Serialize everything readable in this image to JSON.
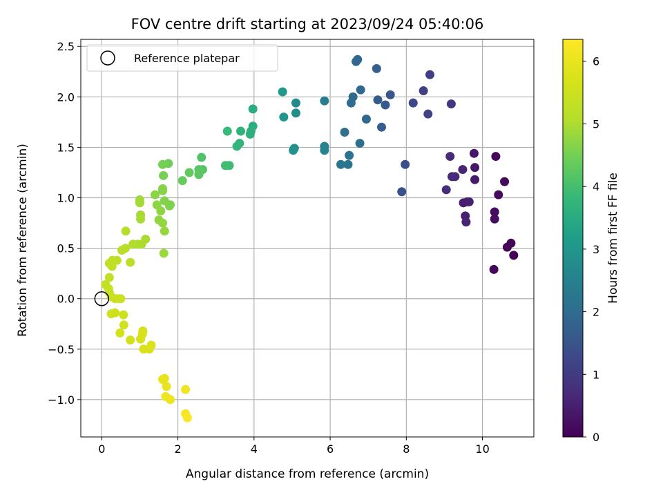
{
  "chart_data": {
    "type": "scatter",
    "title": "FOV centre drift starting at 2023/09/24 05:40:06",
    "xlabel": "Angular distance from reference (arcmin)",
    "ylabel": "Rotation from reference (arcmin)",
    "xlim": [
      -0.55,
      11.35
    ],
    "ylim": [
      -1.37,
      2.57
    ],
    "xticks": [
      0,
      2,
      4,
      6,
      8,
      10
    ],
    "yticks": [
      -1.0,
      -0.5,
      0.0,
      0.5,
      1.0,
      1.5,
      2.0,
      2.5
    ],
    "xtick_labels": [
      "0",
      "2",
      "4",
      "6",
      "8",
      "10"
    ],
    "ytick_labels": [
      "−1.0",
      "−0.5",
      "0.0",
      "0.5",
      "1.0",
      "1.5",
      "2.0",
      "2.5"
    ],
    "grid": true,
    "colormap": "viridis",
    "legend": {
      "position": "top-left",
      "entries": [
        {
          "label": "Reference platepar",
          "marker": "open-circle"
        }
      ]
    },
    "reference_point": {
      "x": 0.0,
      "y": 0.0
    },
    "colorbar": {
      "label": "Hours from first FF file",
      "min": 0,
      "max": 6.35,
      "ticks": [
        0,
        1,
        2,
        3,
        4,
        5,
        6
      ],
      "tick_labels": [
        "0",
        "1",
        "2",
        "3",
        "4",
        "5",
        "6"
      ]
    },
    "points": [
      {
        "x": 10.75,
        "y": 0.55,
        "c": 0.05
      },
      {
        "x": 10.65,
        "y": 0.51,
        "c": 0.08
      },
      {
        "x": 10.82,
        "y": 0.43,
        "c": 0.04
      },
      {
        "x": 10.3,
        "y": 0.29,
        "c": 0.1
      },
      {
        "x": 10.35,
        "y": 1.41,
        "c": 0.12
      },
      {
        "x": 10.58,
        "y": 1.16,
        "c": 0.15
      },
      {
        "x": 10.42,
        "y": 1.03,
        "c": 0.18
      },
      {
        "x": 10.32,
        "y": 0.86,
        "c": 0.2
      },
      {
        "x": 10.32,
        "y": 0.79,
        "c": 0.22
      },
      {
        "x": 9.78,
        "y": 1.44,
        "c": 0.35
      },
      {
        "x": 9.8,
        "y": 1.3,
        "c": 0.38
      },
      {
        "x": 9.8,
        "y": 1.18,
        "c": 0.4
      },
      {
        "x": 9.6,
        "y": 0.96,
        "c": 0.45
      },
      {
        "x": 9.5,
        "y": 0.95,
        "c": 0.48
      },
      {
        "x": 9.65,
        "y": 0.96,
        "c": 0.5
      },
      {
        "x": 9.55,
        "y": 0.82,
        "c": 0.52
      },
      {
        "x": 9.57,
        "y": 0.76,
        "c": 0.55
      },
      {
        "x": 9.48,
        "y": 1.28,
        "c": 0.6
      },
      {
        "x": 9.2,
        "y": 1.21,
        "c": 0.65
      },
      {
        "x": 9.28,
        "y": 1.21,
        "c": 0.68
      },
      {
        "x": 9.15,
        "y": 1.41,
        "c": 0.72
      },
      {
        "x": 9.05,
        "y": 1.08,
        "c": 0.75
      },
      {
        "x": 9.18,
        "y": 1.93,
        "c": 0.9
      },
      {
        "x": 8.62,
        "y": 2.22,
        "c": 1.05
      },
      {
        "x": 8.45,
        "y": 2.06,
        "c": 1.1
      },
      {
        "x": 8.57,
        "y": 1.83,
        "c": 1.15
      },
      {
        "x": 8.18,
        "y": 1.94,
        "c": 1.25
      },
      {
        "x": 7.97,
        "y": 1.33,
        "c": 1.4
      },
      {
        "x": 7.88,
        "y": 1.06,
        "c": 1.45
      },
      {
        "x": 7.58,
        "y": 2.02,
        "c": 1.55
      },
      {
        "x": 7.45,
        "y": 1.92,
        "c": 1.6
      },
      {
        "x": 7.25,
        "y": 1.97,
        "c": 1.65
      },
      {
        "x": 7.35,
        "y": 1.7,
        "c": 1.7
      },
      {
        "x": 7.22,
        "y": 2.28,
        "c": 1.75
      },
      {
        "x": 6.72,
        "y": 2.37,
        "c": 1.85
      },
      {
        "x": 6.68,
        "y": 2.35,
        "c": 1.88
      },
      {
        "x": 6.8,
        "y": 2.07,
        "c": 1.9
      },
      {
        "x": 6.95,
        "y": 1.78,
        "c": 1.93
      },
      {
        "x": 6.6,
        "y": 2.0,
        "c": 1.98
      },
      {
        "x": 6.55,
        "y": 1.94,
        "c": 2.0
      },
      {
        "x": 6.78,
        "y": 1.54,
        "c": 2.05
      },
      {
        "x": 6.38,
        "y": 1.65,
        "c": 2.1
      },
      {
        "x": 6.5,
        "y": 1.42,
        "c": 2.15
      },
      {
        "x": 6.47,
        "y": 1.33,
        "c": 2.2
      },
      {
        "x": 6.28,
        "y": 1.33,
        "c": 2.25
      },
      {
        "x": 5.85,
        "y": 1.96,
        "c": 2.45
      },
      {
        "x": 5.85,
        "y": 1.51,
        "c": 2.55
      },
      {
        "x": 5.85,
        "y": 1.47,
        "c": 2.58
      },
      {
        "x": 5.1,
        "y": 1.94,
        "c": 2.75
      },
      {
        "x": 5.1,
        "y": 1.84,
        "c": 2.8
      },
      {
        "x": 5.06,
        "y": 1.49,
        "c": 2.88
      },
      {
        "x": 5.03,
        "y": 1.47,
        "c": 2.9
      },
      {
        "x": 4.78,
        "y": 1.8,
        "c": 3.0
      },
      {
        "x": 4.75,
        "y": 2.05,
        "c": 3.05
      },
      {
        "x": 3.97,
        "y": 1.88,
        "c": 3.5
      },
      {
        "x": 3.97,
        "y": 1.71,
        "c": 3.55
      },
      {
        "x": 3.92,
        "y": 1.66,
        "c": 3.6
      },
      {
        "x": 3.9,
        "y": 1.63,
        "c": 3.62
      },
      {
        "x": 3.65,
        "y": 1.66,
        "c": 3.68
      },
      {
        "x": 3.62,
        "y": 1.54,
        "c": 3.72
      },
      {
        "x": 3.55,
        "y": 1.51,
        "c": 3.75
      },
      {
        "x": 3.3,
        "y": 1.66,
        "c": 3.85
      },
      {
        "x": 3.35,
        "y": 1.32,
        "c": 3.9
      },
      {
        "x": 3.25,
        "y": 1.32,
        "c": 3.95
      },
      {
        "x": 2.62,
        "y": 1.4,
        "c": 4.1
      },
      {
        "x": 2.65,
        "y": 1.28,
        "c": 4.15
      },
      {
        "x": 2.55,
        "y": 1.28,
        "c": 4.2
      },
      {
        "x": 2.58,
        "y": 1.26,
        "c": 4.22
      },
      {
        "x": 2.55,
        "y": 1.23,
        "c": 4.25
      },
      {
        "x": 2.3,
        "y": 1.25,
        "c": 4.3
      },
      {
        "x": 2.12,
        "y": 1.17,
        "c": 4.35
      },
      {
        "x": 1.75,
        "y": 1.34,
        "c": 4.45
      },
      {
        "x": 1.6,
        "y": 1.33,
        "c": 4.5
      },
      {
        "x": 1.62,
        "y": 1.22,
        "c": 4.52
      },
      {
        "x": 1.78,
        "y": 0.92,
        "c": 4.58
      },
      {
        "x": 1.8,
        "y": 0.93,
        "c": 4.6
      },
      {
        "x": 1.65,
        "y": 0.97,
        "c": 4.62
      },
      {
        "x": 1.6,
        "y": 1.09,
        "c": 4.65
      },
      {
        "x": 1.6,
        "y": 1.07,
        "c": 4.66
      },
      {
        "x": 1.4,
        "y": 1.03,
        "c": 4.7
      },
      {
        "x": 1.45,
        "y": 0.93,
        "c": 4.72
      },
      {
        "x": 1.55,
        "y": 0.87,
        "c": 4.74
      },
      {
        "x": 1.5,
        "y": 0.78,
        "c": 4.76
      },
      {
        "x": 1.6,
        "y": 0.75,
        "c": 4.78
      },
      {
        "x": 1.65,
        "y": 0.67,
        "c": 4.8
      },
      {
        "x": 1.63,
        "y": 0.45,
        "c": 4.85
      },
      {
        "x": 1.0,
        "y": 0.98,
        "c": 4.9
      },
      {
        "x": 1.0,
        "y": 0.95,
        "c": 4.92
      },
      {
        "x": 1.02,
        "y": 0.83,
        "c": 4.94
      },
      {
        "x": 1.02,
        "y": 0.79,
        "c": 4.96
      },
      {
        "x": 1.15,
        "y": 0.59,
        "c": 4.98
      },
      {
        "x": 1.05,
        "y": 0.54,
        "c": 5.0
      },
      {
        "x": 0.95,
        "y": 0.54,
        "c": 5.02
      },
      {
        "x": 0.82,
        "y": 0.54,
        "c": 5.04
      },
      {
        "x": 0.63,
        "y": 0.67,
        "c": 5.08
      },
      {
        "x": 0.62,
        "y": 0.5,
        "c": 5.12
      },
      {
        "x": 0.53,
        "y": 0.48,
        "c": 5.15
      },
      {
        "x": 0.75,
        "y": 0.36,
        "c": 5.18
      },
      {
        "x": 0.4,
        "y": 0.38,
        "c": 5.22
      },
      {
        "x": 0.28,
        "y": 0.38,
        "c": 5.25
      },
      {
        "x": 0.2,
        "y": 0.35,
        "c": 5.27
      },
      {
        "x": 0.27,
        "y": 0.32,
        "c": 5.3
      },
      {
        "x": 0.2,
        "y": 0.21,
        "c": 5.33
      },
      {
        "x": 0.1,
        "y": 0.14,
        "c": 5.36
      },
      {
        "x": 0.18,
        "y": 0.1,
        "c": 5.38
      },
      {
        "x": 0.2,
        "y": 0.06,
        "c": 5.4
      },
      {
        "x": 0.25,
        "y": 0.02,
        "c": 5.42
      },
      {
        "x": 0.35,
        "y": 0.0,
        "c": 5.44
      },
      {
        "x": 0.45,
        "y": 0.0,
        "c": 5.46
      },
      {
        "x": 0.5,
        "y": 0.0,
        "c": 5.48
      },
      {
        "x": 0.25,
        "y": -0.15,
        "c": 5.52
      },
      {
        "x": 0.35,
        "y": -0.14,
        "c": 5.54
      },
      {
        "x": 0.57,
        "y": -0.16,
        "c": 5.56
      },
      {
        "x": 0.58,
        "y": -0.26,
        "c": 5.58
      },
      {
        "x": 0.48,
        "y": -0.34,
        "c": 5.6
      },
      {
        "x": 0.75,
        "y": -0.41,
        "c": 5.63
      },
      {
        "x": 1.08,
        "y": -0.32,
        "c": 5.66
      },
      {
        "x": 1.07,
        "y": -0.35,
        "c": 5.68
      },
      {
        "x": 1.02,
        "y": -0.4,
        "c": 5.7
      },
      {
        "x": 1.1,
        "y": -0.5,
        "c": 5.73
      },
      {
        "x": 1.25,
        "y": -0.5,
        "c": 5.75
      },
      {
        "x": 1.3,
        "y": -0.46,
        "c": 5.77
      },
      {
        "x": 1.6,
        "y": -0.8,
        "c": 5.95
      },
      {
        "x": 1.65,
        "y": -0.79,
        "c": 5.97
      },
      {
        "x": 1.7,
        "y": -0.87,
        "c": 6.0
      },
      {
        "x": 1.68,
        "y": -0.97,
        "c": 6.05
      },
      {
        "x": 1.8,
        "y": -1.0,
        "c": 6.08
      },
      {
        "x": 2.2,
        "y": -0.9,
        "c": 6.15
      },
      {
        "x": 2.2,
        "y": -1.14,
        "c": 6.25
      },
      {
        "x": 2.25,
        "y": -1.18,
        "c": 6.3
      }
    ]
  }
}
